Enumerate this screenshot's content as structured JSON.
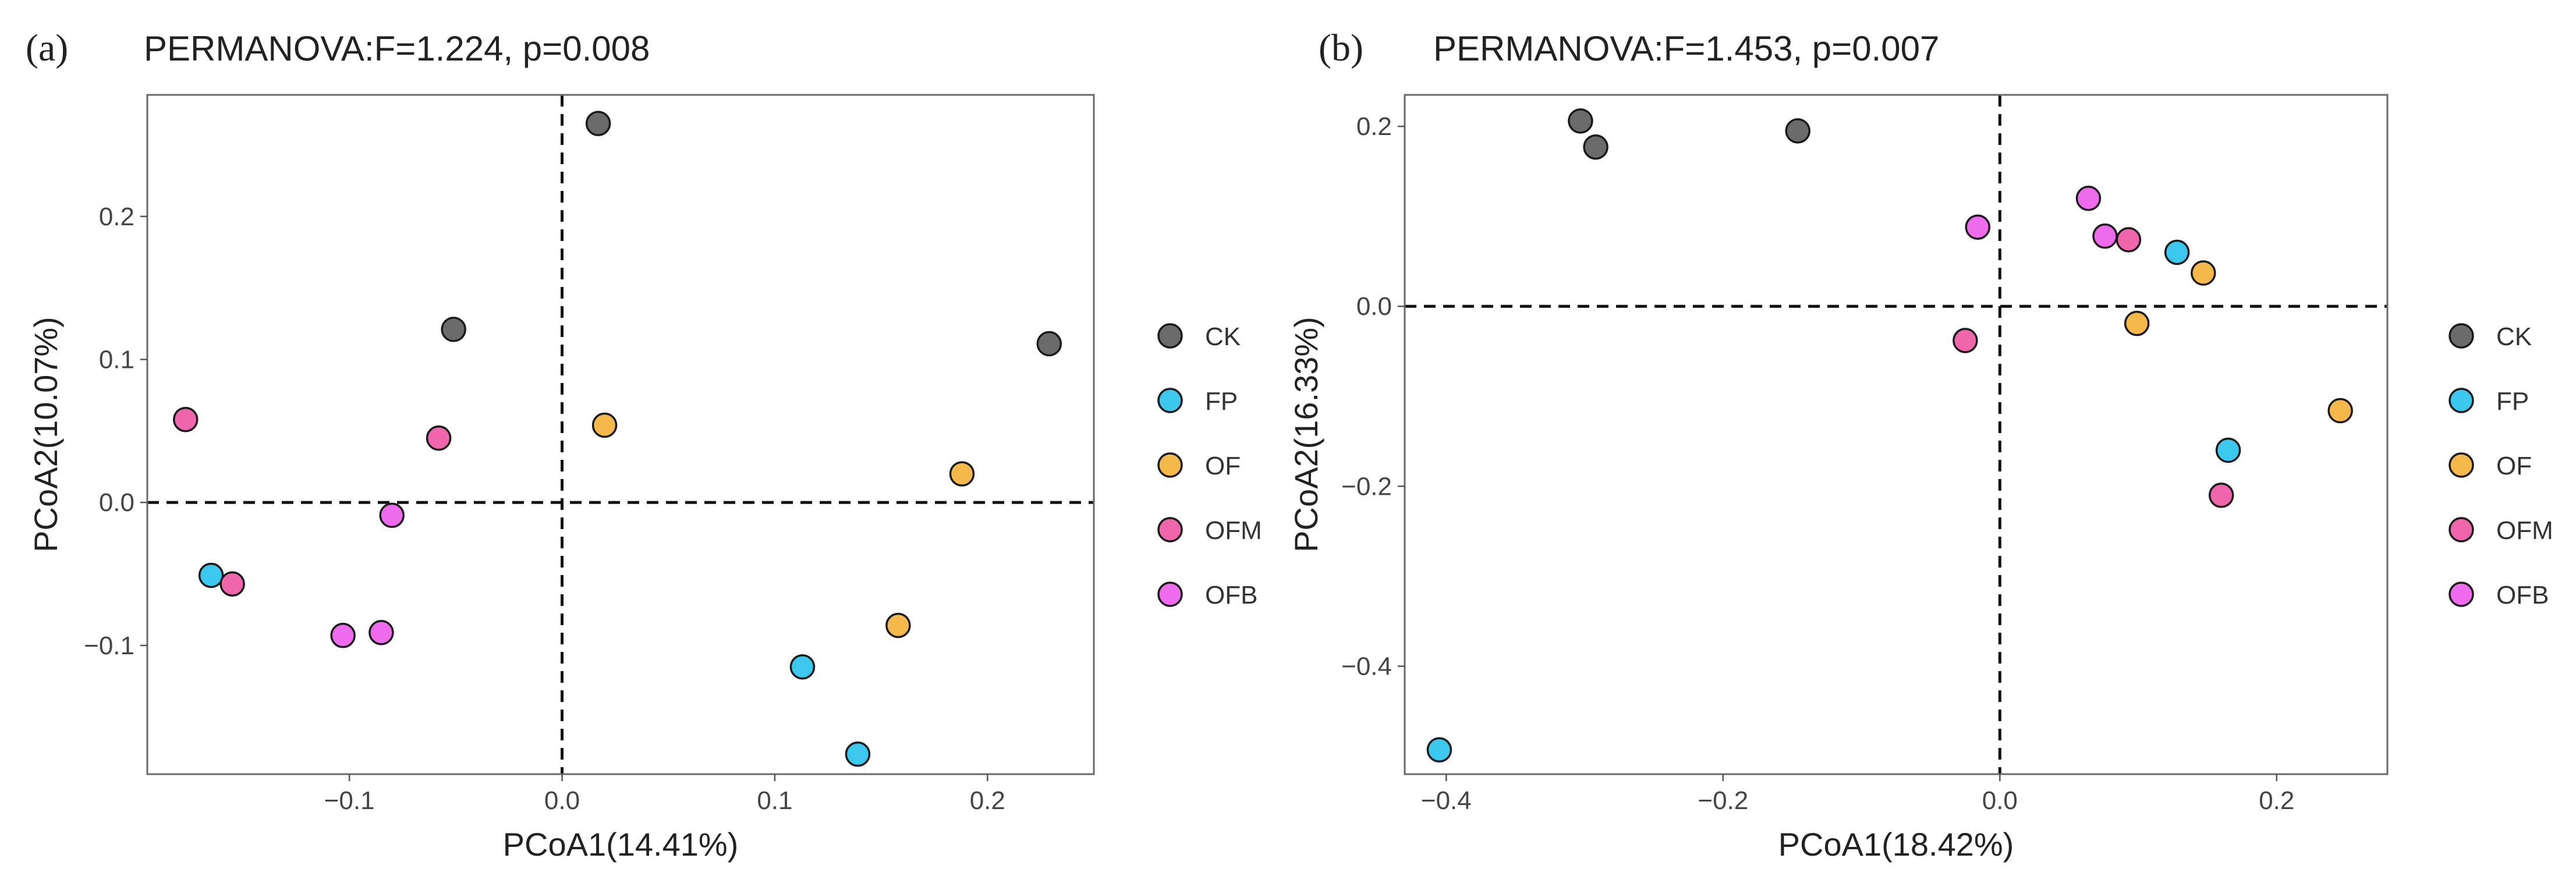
{
  "chart_data": [
    {
      "type": "scatter",
      "panel_label": "(a)",
      "title": "PERMANOVA:F=1.224, p=0.008",
      "xlabel": "PCoA1(14.41%)",
      "ylabel": "PCoA2(10.07%)",
      "xlim": [
        -0.195,
        0.25
      ],
      "ylim": [
        -0.19,
        0.285
      ],
      "xticks": [
        -0.1,
        0.0,
        0.1,
        0.2
      ],
      "xtick_labels": [
        "−0.1",
        "0.0",
        "0.1",
        "0.2"
      ],
      "yticks": [
        -0.1,
        0.0,
        0.1,
        0.2
      ],
      "ytick_labels": [
        "−0.1",
        "0.0",
        "0.1",
        "0.2"
      ],
      "ref_lines": {
        "x": 0,
        "y": 0
      },
      "legend_position": "right",
      "series": [
        {
          "name": "CK",
          "color": "#6b6b6b",
          "points": [
            [
              0.017,
              0.265
            ],
            [
              -0.051,
              0.121
            ],
            [
              0.229,
              0.111
            ]
          ]
        },
        {
          "name": "FP",
          "color": "#3cc8ee",
          "points": [
            [
              -0.165,
              -0.051
            ],
            [
              0.113,
              -0.115
            ],
            [
              0.139,
              -0.176
            ]
          ]
        },
        {
          "name": "OF",
          "color": "#f4b94a",
          "points": [
            [
              0.02,
              0.054
            ],
            [
              0.188,
              0.02
            ],
            [
              0.158,
              -0.086
            ]
          ]
        },
        {
          "name": "OFM",
          "color": "#f066ad",
          "points": [
            [
              -0.177,
              0.058
            ],
            [
              -0.058,
              0.045
            ],
            [
              -0.155,
              -0.057
            ]
          ]
        },
        {
          "name": "OFB",
          "color": "#ee6bee",
          "points": [
            [
              -0.08,
              -0.009
            ],
            [
              -0.103,
              -0.093
            ],
            [
              -0.085,
              -0.091
            ]
          ]
        }
      ]
    },
    {
      "type": "scatter",
      "panel_label": "(b)",
      "title": "PERMANOVA:F=1.453, p=0.007",
      "xlabel": "PCoA1(18.42%)",
      "ylabel": "PCoA2(16.33%)",
      "xlim": [
        -0.43,
        0.28
      ],
      "ylim": [
        -0.52,
        0.235
      ],
      "xticks": [
        -0.4,
        -0.2,
        0.0,
        0.2
      ],
      "xtick_labels": [
        "−0.4",
        "−0.2",
        "0.0",
        "0.2"
      ],
      "yticks": [
        -0.4,
        -0.2,
        0.0,
        0.2
      ],
      "ytick_labels": [
        "−0.4",
        "−0.2",
        "0.0",
        "0.2"
      ],
      "ref_lines": {
        "x": 0,
        "y": 0
      },
      "legend_position": "right",
      "series": [
        {
          "name": "CK",
          "color": "#6b6b6b",
          "points": [
            [
              -0.303,
              0.206
            ],
            [
              -0.292,
              0.177
            ],
            [
              -0.146,
              0.195
            ]
          ]
        },
        {
          "name": "FP",
          "color": "#3cc8ee",
          "points": [
            [
              0.128,
              0.06
            ],
            [
              0.165,
              -0.16
            ],
            [
              -0.405,
              -0.493
            ]
          ]
        },
        {
          "name": "OF",
          "color": "#f4b94a",
          "points": [
            [
              0.147,
              0.037
            ],
            [
              0.099,
              -0.019
            ],
            [
              0.246,
              -0.116
            ]
          ]
        },
        {
          "name": "OFM",
          "color": "#f066ad",
          "points": [
            [
              0.093,
              0.074
            ],
            [
              -0.025,
              -0.038
            ],
            [
              0.16,
              -0.21
            ]
          ]
        },
        {
          "name": "OFB",
          "color": "#ee6bee",
          "points": [
            [
              0.064,
              0.12
            ],
            [
              0.076,
              0.078
            ],
            [
              -0.016,
              0.088
            ]
          ]
        }
      ]
    }
  ]
}
